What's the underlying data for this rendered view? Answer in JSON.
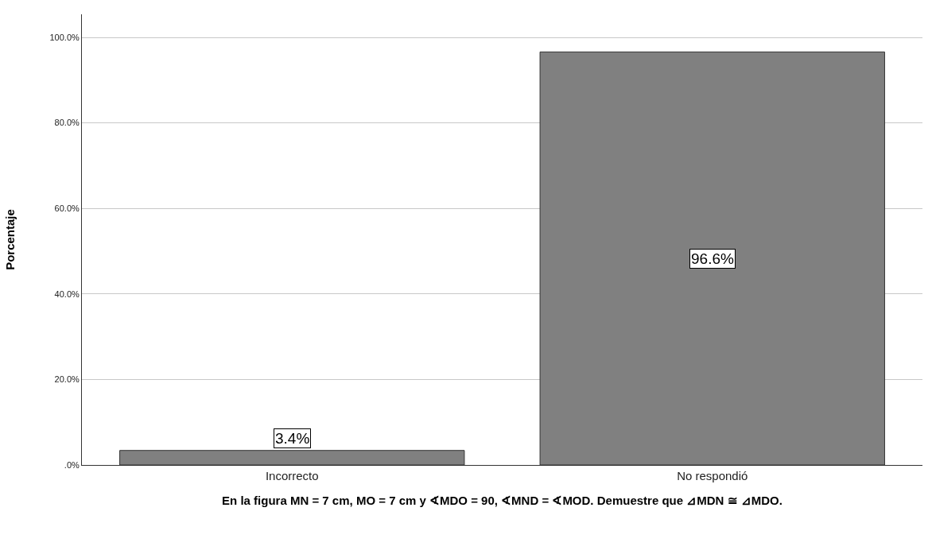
{
  "chart_data": {
    "type": "bar",
    "xlabel": "En la figura MN = 7 cm, MO = 7 cm y ∢MDO = 90, ∢MND = ∢MOD. Demuestre que ⊿MDN ≅ ⊿MDO.",
    "ylabel": "Porcentaje",
    "categories": [
      "Incorrecto",
      "No respondió"
    ],
    "values": [
      3.4,
      96.6
    ],
    "value_labels": [
      "3.4%",
      "96.6%"
    ],
    "color": "#808080",
    "ylim": [
      0,
      105.4
    ],
    "yticks": [
      {
        "value": 0,
        "label": ".0%"
      },
      {
        "value": 20,
        "label": "20.0%"
      },
      {
        "value": 40,
        "label": "40.0%"
      },
      {
        "value": 60,
        "label": "60.0%"
      },
      {
        "value": 80,
        "label": "80.0%"
      },
      {
        "value": 100,
        "label": "100.0%"
      }
    ],
    "grid": "y",
    "legend": false
  }
}
